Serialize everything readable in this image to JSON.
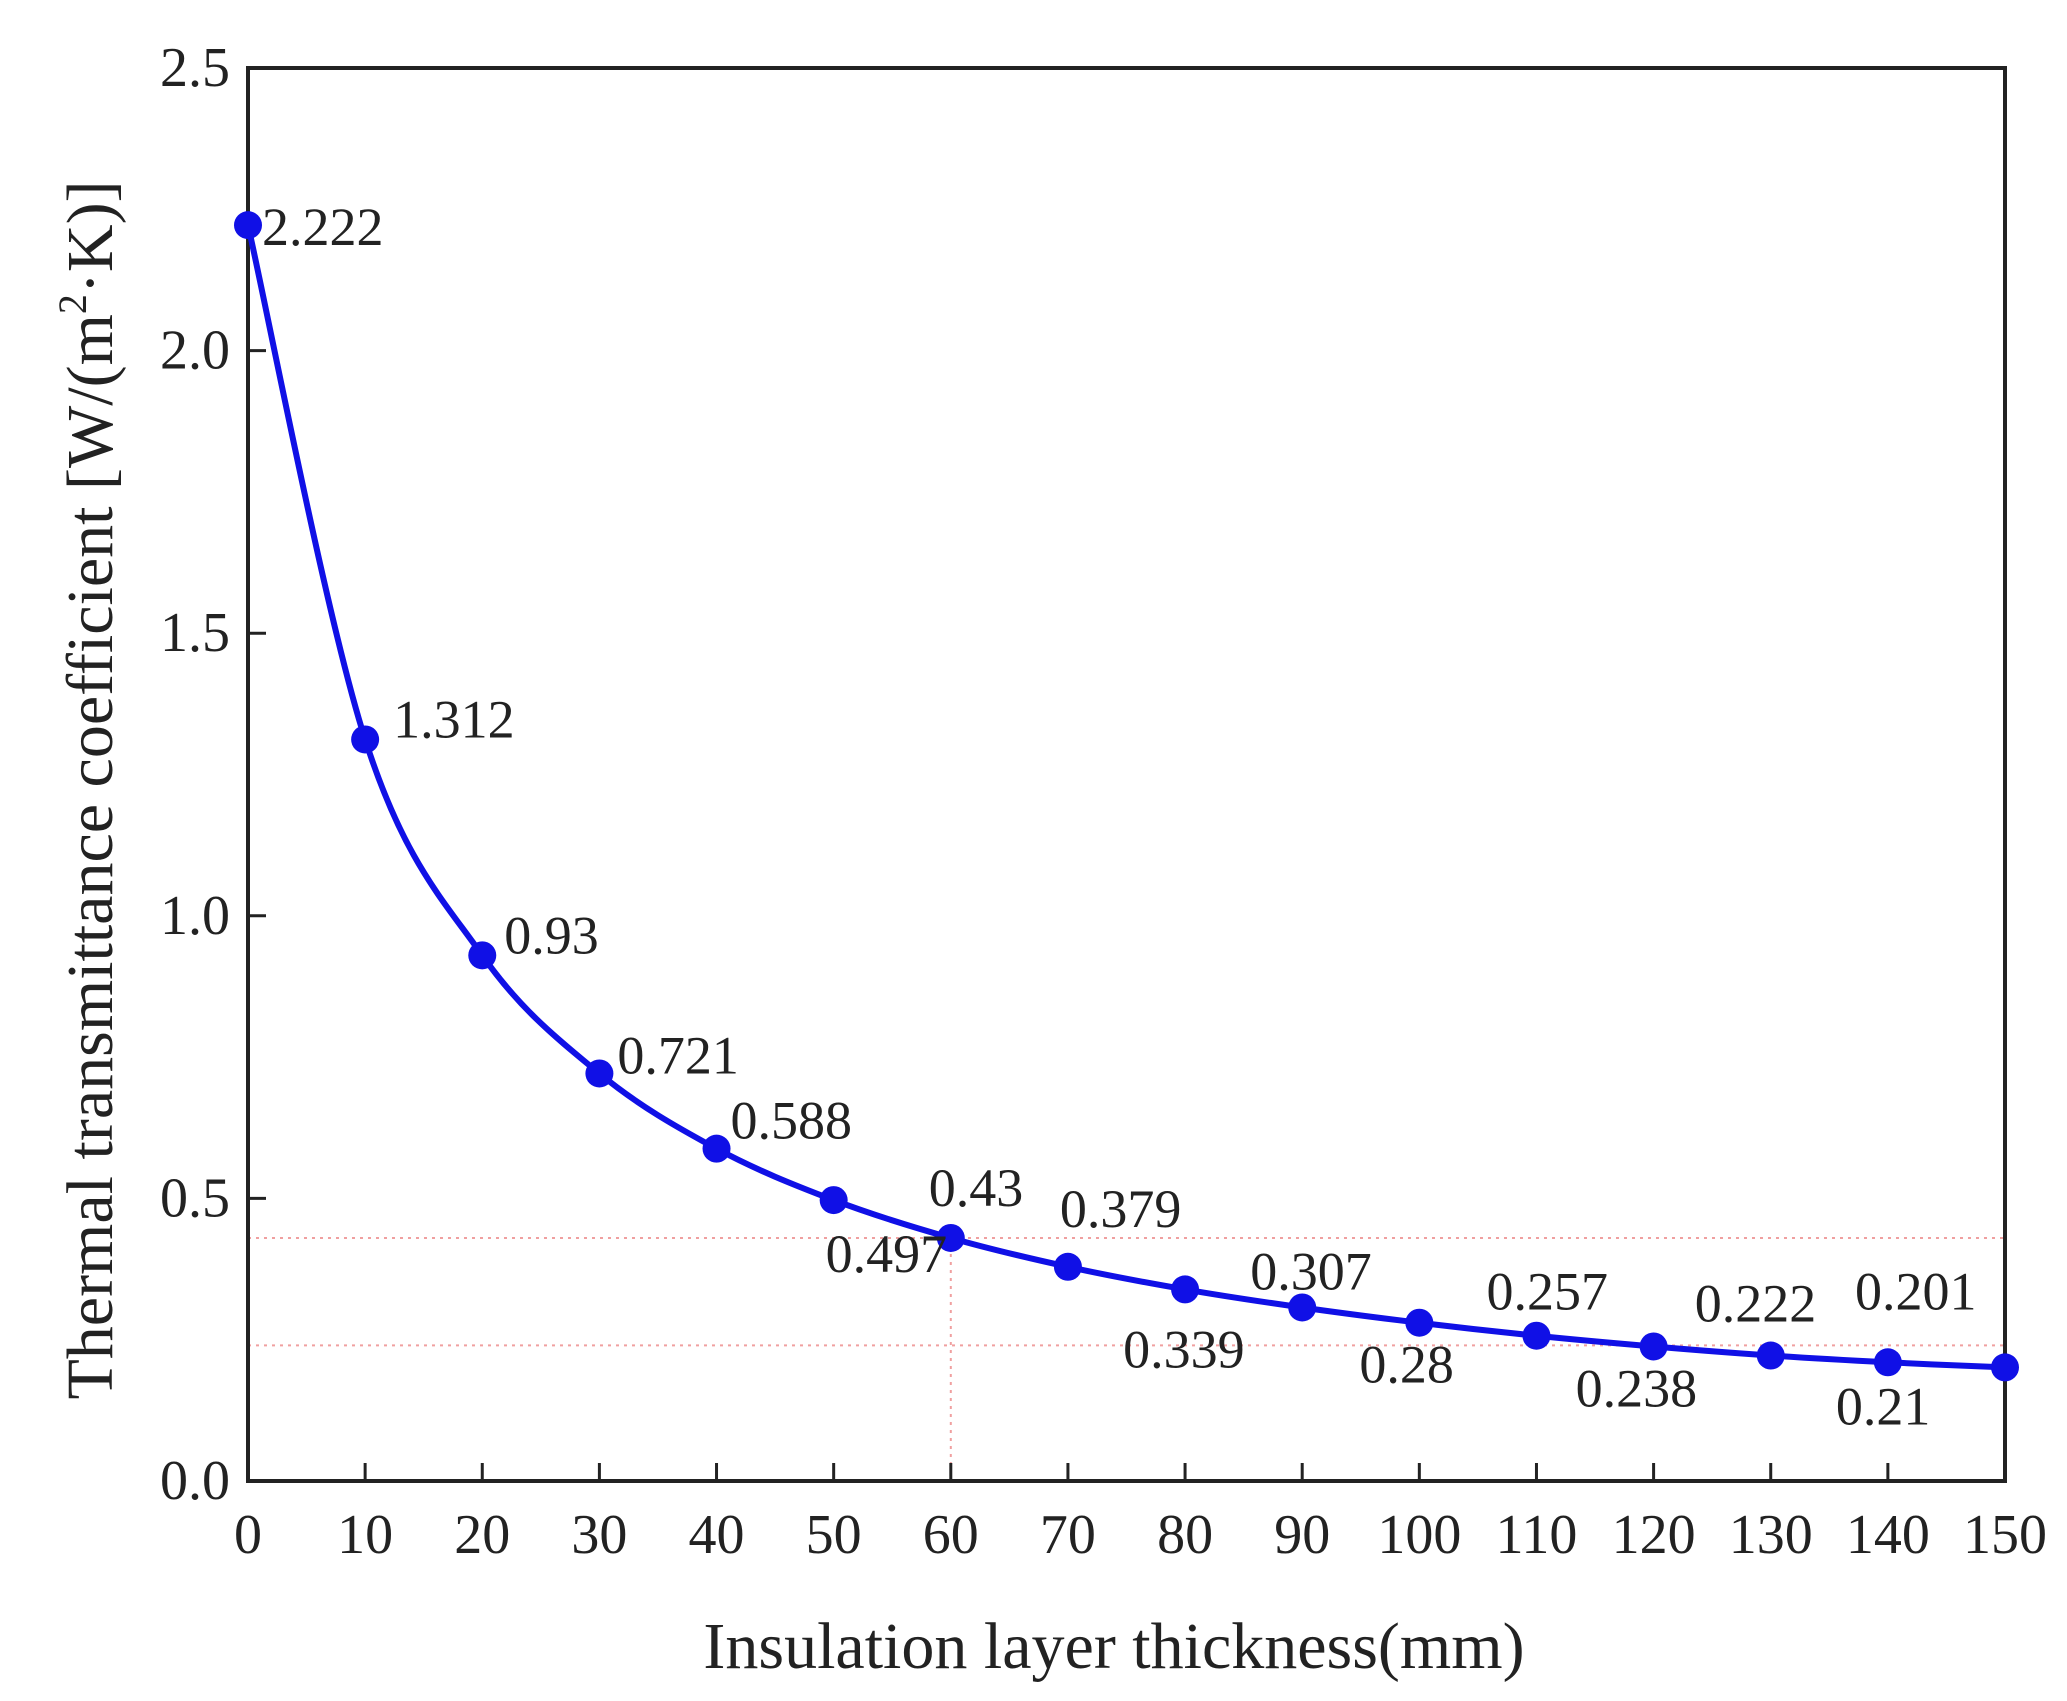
{
  "chart_data": {
    "type": "line",
    "xlabel": "Insulation layer thickness(mm)",
    "ylabel": "Thermal transmittance coefficient [W/(m",
    "ylabel_sup": "2",
    "ylabel_tail": "·K)]",
    "xlim": [
      0,
      150
    ],
    "ylim": [
      0,
      2.5
    ],
    "x_ticks": [
      0,
      10,
      20,
      30,
      40,
      50,
      60,
      70,
      80,
      90,
      100,
      110,
      120,
      130,
      140,
      150
    ],
    "y_ticks": [
      0.0,
      0.5,
      1.0,
      1.5,
      2.0,
      2.5
    ],
    "y_tick_labels": [
      "0.0",
      "0.5",
      "1.0",
      "1.5",
      "2.0",
      "2.5"
    ],
    "grid": false,
    "legend": "none",
    "series": [
      {
        "color": "#1010e6",
        "x": [
          0,
          10,
          20,
          30,
          40,
          50,
          60,
          70,
          80,
          90,
          100,
          110,
          120,
          130,
          140,
          150
        ],
        "y": [
          2.222,
          1.312,
          0.93,
          0.721,
          0.588,
          0.497,
          0.43,
          0.379,
          0.339,
          0.307,
          0.28,
          0.257,
          0.238,
          0.222,
          0.21,
          0.201
        ],
        "labels": [
          "2.222",
          "1.312",
          "0.93",
          "0.721",
          "0.588",
          "0.497",
          "0.43",
          "0.379",
          "0.339",
          "0.307",
          "0.28",
          "0.257",
          "0.238",
          "0.222",
          "0.21",
          "0.201"
        ]
      }
    ],
    "reference_lines": [
      {
        "orientation": "horizontal",
        "y": 0.43,
        "color": "#f0a0a0"
      },
      {
        "orientation": "horizontal",
        "y": 0.24,
        "color": "#f0a0a0"
      },
      {
        "orientation": "vertical",
        "x": 60,
        "color": "#f0a0a0"
      }
    ]
  }
}
